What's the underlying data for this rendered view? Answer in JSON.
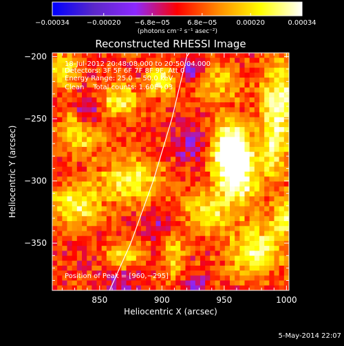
{
  "chart_data": {
    "type": "heatmap",
    "title": "Reconstructed RHESSI Image",
    "xlabel": "Heliocentric X (arcsec)",
    "ylabel": "Heliocentric Y (arcsec)",
    "xlim": [
      812,
      1002
    ],
    "ylim": [
      -388,
      -197
    ],
    "xticks": [
      850,
      900,
      950,
      1000
    ],
    "yticks": [
      -350,
      -300,
      -250,
      -200
    ],
    "xtick_labels": [
      "850",
      "900",
      "950",
      "1000"
    ],
    "ytick_labels": [
      "−350",
      "−300",
      "−250",
      "−200"
    ],
    "colorbar": {
      "range": [
        -0.00034,
        0.00034
      ],
      "tick_values": [
        -0.00034,
        -0.0002,
        -6.8e-05,
        6.8e-05,
        0.0002,
        0.00034
      ],
      "tick_labels": [
        "−0.00034",
        "−0.00020",
        "−6.8e−05",
        "6.8e−05",
        "0.00020",
        "0.00034"
      ],
      "unit": "(photons cm⁻² s⁻¹ asec⁻²)",
      "colors": [
        "#0000ff",
        "#5a28c8",
        "#8c28ff",
        "#ff0000",
        "#ff8c00",
        "#ffff00",
        "#ffffff"
      ]
    },
    "annotations": [
      "18-Jul-2012 20:48:08.000 to 20:50:04.000",
      "Detectors: 3F 5F 6F 7F 8F 9F, Att 0",
      "Energy Range: 25.0 − 50.0 keV",
      "Clean    Total counts: 1.60E+03",
      "Position of Peak = [960,−295]"
    ],
    "peak": {
      "x": 960,
      "y": -295
    },
    "limb_arc_points": [
      [
        858,
        -388
      ],
      [
        875,
        -350
      ],
      [
        893,
        -300
      ],
      [
        908,
        -250
      ],
      [
        920,
        -200
      ],
      [
        922,
        -197
      ]
    ],
    "bright_regions": [
      {
        "x": 960,
        "y": -295,
        "peak": 0.00034,
        "rx": 12,
        "ry": 18
      },
      {
        "x": 955,
        "y": -270,
        "peak": 0.00028,
        "rx": 10,
        "ry": 15
      },
      {
        "x": 995,
        "y": -230,
        "peak": 0.00025,
        "rx": 10,
        "ry": 20
      },
      {
        "x": 990,
        "y": -270,
        "peak": 0.00022,
        "rx": 8,
        "ry": 20
      },
      {
        "x": 900,
        "y": -220,
        "peak": 0.00024,
        "rx": 7,
        "ry": 9
      },
      {
        "x": 865,
        "y": -235,
        "peak": 0.00022,
        "rx": 12,
        "ry": 9
      },
      {
        "x": 820,
        "y": -210,
        "peak": 0.00021,
        "rx": 10,
        "ry": 10
      },
      {
        "x": 835,
        "y": -260,
        "peak": 0.00023,
        "rx": 12,
        "ry": 12
      },
      {
        "x": 875,
        "y": -300,
        "peak": 0.00022,
        "rx": 18,
        "ry": 12
      },
      {
        "x": 830,
        "y": -320,
        "peak": 0.00024,
        "rx": 14,
        "ry": 12
      },
      {
        "x": 870,
        "y": -360,
        "peak": 0.00018,
        "rx": 10,
        "ry": 8
      },
      {
        "x": 910,
        "y": -360,
        "peak": 0.00016,
        "rx": 6,
        "ry": 18
      },
      {
        "x": 935,
        "y": -325,
        "peak": 0.0002,
        "rx": 12,
        "ry": 10
      },
      {
        "x": 945,
        "y": -220,
        "peak": 0.00016,
        "rx": 12,
        "ry": 10
      },
      {
        "x": 975,
        "y": -355,
        "peak": 0.00024,
        "rx": 15,
        "ry": 15
      },
      {
        "x": 1000,
        "y": -330,
        "peak": 0.00022,
        "rx": 8,
        "ry": 12
      }
    ],
    "negative_regions": [
      {
        "x": 842,
        "y": -245,
        "peak": -0.0002,
        "rx": 8,
        "ry": 10
      },
      {
        "x": 925,
        "y": -210,
        "peak": -0.00014,
        "rx": 7,
        "ry": 8
      },
      {
        "x": 923,
        "y": -270,
        "peak": -0.00013,
        "rx": 8,
        "ry": 8
      },
      {
        "x": 902,
        "y": -335,
        "peak": -0.0001,
        "rx": 8,
        "ry": 8
      },
      {
        "x": 870,
        "y": -380,
        "peak": -0.00012,
        "rx": 8,
        "ry": 6
      },
      {
        "x": 925,
        "y": -385,
        "peak": -0.0001,
        "rx": 8,
        "ry": 6
      }
    ]
  },
  "footer": {
    "date": "5-May-2014 22:07"
  }
}
